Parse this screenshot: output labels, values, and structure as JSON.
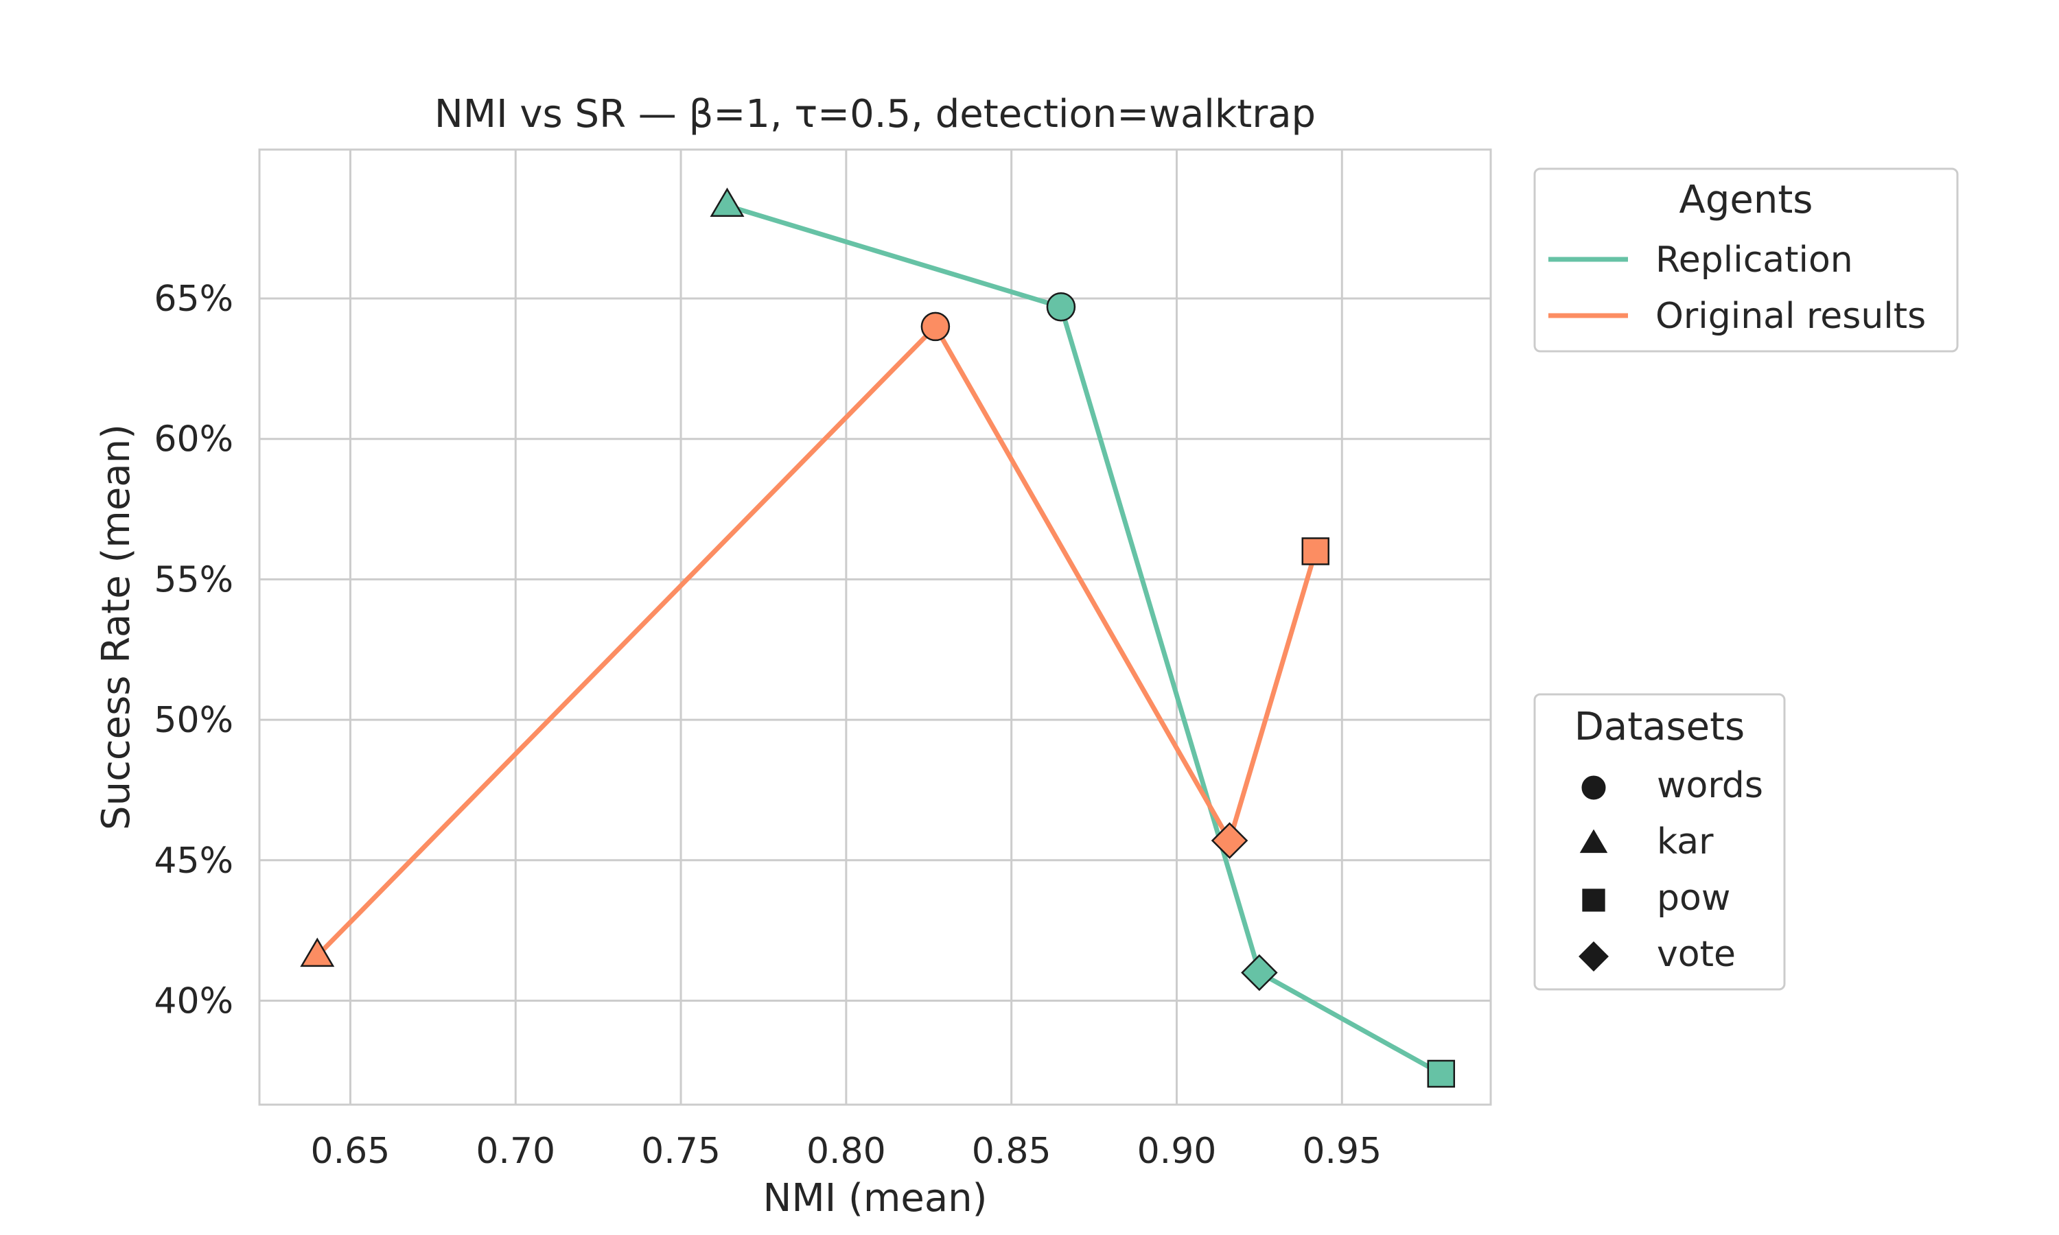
{
  "chart_data": {
    "type": "scatter",
    "title": "NMI vs SR — β=1, τ=0.5, detection=walktrap",
    "xlabel": "NMI (mean)",
    "ylabel": "Success Rate (mean)",
    "xlim": [
      0.6225,
      0.995
    ],
    "ylim": [
      36.3,
      70.3
    ],
    "xticks": [
      0.65,
      0.7,
      0.75,
      0.8,
      0.85,
      0.9,
      0.95
    ],
    "xtick_labels": [
      "0.65",
      "0.70",
      "0.75",
      "0.80",
      "0.85",
      "0.90",
      "0.95"
    ],
    "yticks": [
      40,
      45,
      50,
      55,
      60,
      65
    ],
    "ytick_labels": [
      "40%",
      "45%",
      "50%",
      "55%",
      "60%",
      "65%"
    ],
    "grid": true,
    "series": [
      {
        "name": "Replication",
        "color": "#66c2a5",
        "points": [
          {
            "dataset": "kar",
            "x": 0.764,
            "y": 68.3
          },
          {
            "dataset": "words",
            "x": 0.865,
            "y": 64.7
          },
          {
            "dataset": "vote",
            "x": 0.925,
            "y": 41.0
          },
          {
            "dataset": "pow",
            "x": 0.98,
            "y": 37.4
          }
        ]
      },
      {
        "name": "Original results",
        "color": "#fc8d62",
        "points": [
          {
            "dataset": "kar",
            "x": 0.64,
            "y": 41.6
          },
          {
            "dataset": "words",
            "x": 0.827,
            "y": 64.0
          },
          {
            "dataset": "vote",
            "x": 0.916,
            "y": 45.7
          },
          {
            "dataset": "pow",
            "x": 0.942,
            "y": 56.0
          }
        ]
      }
    ],
    "legend_agents": {
      "title": "Agents",
      "placement": "upper-right-outside",
      "entries": [
        {
          "label": "Replication",
          "color": "#66c2a5"
        },
        {
          "label": "Original results",
          "color": "#fc8d62"
        }
      ]
    },
    "legend_datasets": {
      "title": "Datasets",
      "placement": "right-outside",
      "entries": [
        {
          "label": "words",
          "marker": "circle"
        },
        {
          "label": "kar",
          "marker": "triangle"
        },
        {
          "label": "pow",
          "marker": "square"
        },
        {
          "label": "vote",
          "marker": "diamond"
        }
      ]
    }
  }
}
